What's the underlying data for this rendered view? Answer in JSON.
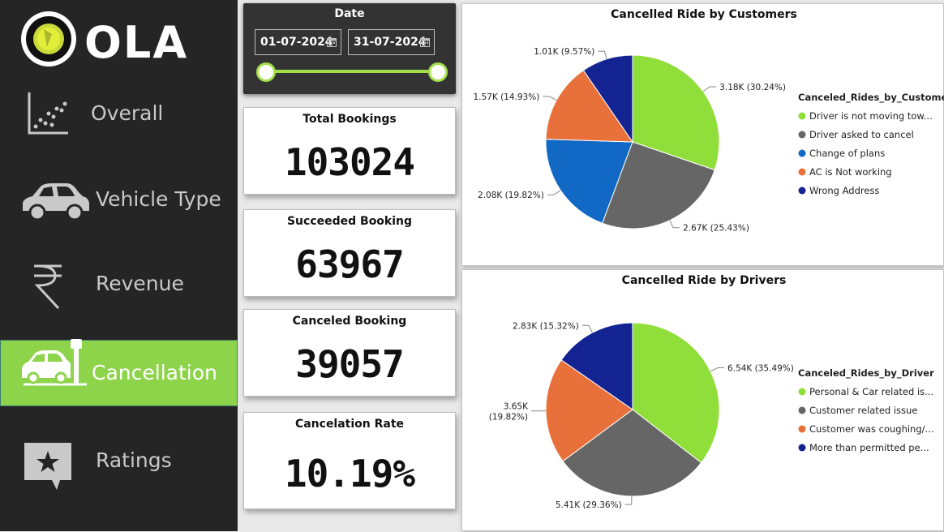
{
  "brand": {
    "name": "OLA"
  },
  "nav": {
    "items": [
      {
        "label": "Overall",
        "icon": "scatter-chart-icon"
      },
      {
        "label": "Vehicle Type",
        "icon": "car-icon"
      },
      {
        "label": "Revenue",
        "icon": "rupee-icon"
      },
      {
        "label": "Cancellation",
        "icon": "car-crash-icon",
        "active": true
      },
      {
        "label": "Ratings",
        "icon": "star-comment-icon"
      }
    ]
  },
  "date_filter": {
    "title": "Date",
    "start": "01-07-2024",
    "end": "31-07-2024"
  },
  "kpis": {
    "total_bookings": {
      "label": "Total Bookings",
      "value": "103024"
    },
    "succeeded": {
      "label": "Succeeded Booking",
      "value": "63967"
    },
    "canceled": {
      "label": "Canceled Booking",
      "value": "39057"
    },
    "rate": {
      "label": "Cancelation Rate",
      "value": "10.19%"
    }
  },
  "colors": {
    "accent_green": "#8ed44a",
    "slice_green": "#8fde3a",
    "slice_grey": "#666666",
    "slice_blue": "#1269c5",
    "slice_orange": "#e8703a",
    "slice_navy": "#142392"
  },
  "chart_data": [
    {
      "type": "pie",
      "title": "Cancelled Ride by Customers",
      "legend_title": "Canceled_Rides_by_Customer",
      "legend_position": "right",
      "slices": [
        {
          "name": "Driver is not moving tow...",
          "value": 30.24,
          "label": "3.18K (30.24%)",
          "color": "#8fde3a"
        },
        {
          "name": "Driver asked to cancel",
          "value": 25.43,
          "label": "2.67K (25.43%)",
          "color": "#666666"
        },
        {
          "name": "Change of plans",
          "value": 19.82,
          "label": "2.08K (19.82%)",
          "color": "#1269c5"
        },
        {
          "name": "AC is Not working",
          "value": 14.93,
          "label": "1.57K (14.93%)",
          "color": "#e8703a"
        },
        {
          "name": "Wrong Address",
          "value": 9.57,
          "label": "1.01K (9.57%)",
          "color": "#142392"
        }
      ]
    },
    {
      "type": "pie",
      "title": "Cancelled Ride by Drivers",
      "legend_title": "Canceled_Rides_by_Driver",
      "legend_position": "right",
      "slices": [
        {
          "name": "Personal & Car related is...",
          "value": 35.49,
          "label": "6.54K (35.49%)",
          "color": "#8fde3a"
        },
        {
          "name": "Customer related issue",
          "value": 29.36,
          "label": "5.41K (29.36%)",
          "color": "#666666"
        },
        {
          "name": "Customer was coughing/...",
          "value": 19.82,
          "label": "3.65K (19.82%)",
          "color": "#e8703a"
        },
        {
          "name": "More than permitted pe...",
          "value": 15.32,
          "label": "2.83K (15.32%)",
          "color": "#142392"
        }
      ]
    }
  ]
}
